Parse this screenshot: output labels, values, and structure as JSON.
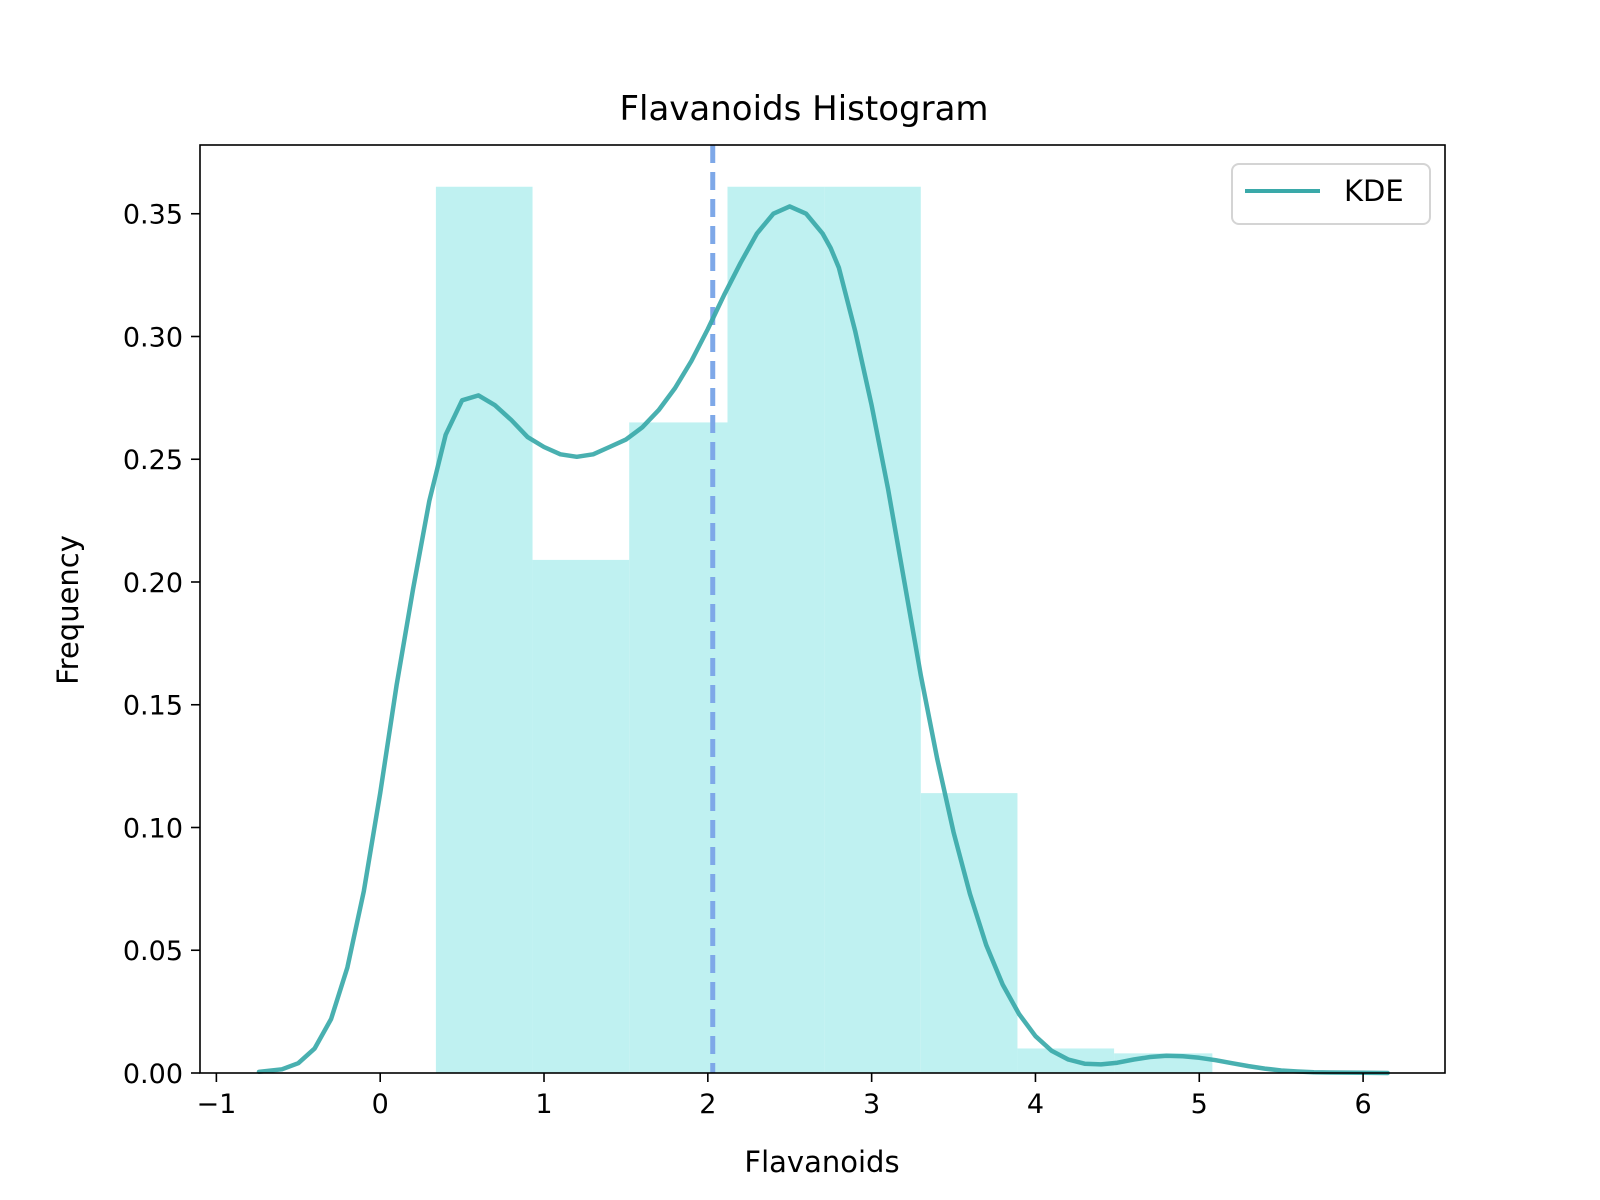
{
  "chart_data": {
    "type": "bar",
    "title": "Flavanoids Histogram",
    "xlabel": "Flavanoids",
    "ylabel": "Frequency",
    "xlim": [
      -1.1,
      6.5
    ],
    "ylim": [
      0,
      0.378
    ],
    "x_ticks": [
      -1,
      0,
      1,
      2,
      3,
      4,
      5,
      6
    ],
    "x_tick_labels": [
      "−1",
      "0",
      "1",
      "2",
      "3",
      "4",
      "5",
      "6"
    ],
    "y_ticks": [
      0,
      0.05,
      0.1,
      0.15,
      0.2,
      0.25,
      0.3,
      0.35
    ],
    "y_tick_labels": [
      "0.00",
      "0.05",
      "0.10",
      "0.15",
      "0.20",
      "0.25",
      "0.30",
      "0.35"
    ],
    "grid": false,
    "legend": {
      "position": "top-right",
      "entries": [
        {
          "label": "KDE",
          "color": "#3aa9a9"
        }
      ]
    },
    "histogram": {
      "color": "#bff1f1",
      "bins": [
        {
          "x0": 0.34,
          "x1": 0.93,
          "value": 0.361
        },
        {
          "x0": 0.93,
          "x1": 1.52,
          "value": 0.209
        },
        {
          "x0": 1.52,
          "x1": 2.12,
          "value": 0.265
        },
        {
          "x0": 2.12,
          "x1": 2.71,
          "value": 0.361
        },
        {
          "x0": 2.71,
          "x1": 3.3,
          "value": 0.361
        },
        {
          "x0": 3.3,
          "x1": 3.89,
          "value": 0.114
        },
        {
          "x0": 3.89,
          "x1": 4.48,
          "value": 0.01
        },
        {
          "x0": 4.48,
          "x1": 5.08,
          "value": 0.008
        }
      ]
    },
    "kde": {
      "name": "KDE",
      "color": "#3aa9a9",
      "x": [
        -0.74,
        -0.6,
        -0.5,
        -0.4,
        -0.3,
        -0.2,
        -0.1,
        0.0,
        0.1,
        0.2,
        0.3,
        0.4,
        0.5,
        0.6,
        0.7,
        0.8,
        0.9,
        1.0,
        1.1,
        1.2,
        1.3,
        1.4,
        1.5,
        1.6,
        1.7,
        1.8,
        1.9,
        2.0,
        2.1,
        2.2,
        2.3,
        2.4,
        2.5,
        2.6,
        2.7,
        2.75,
        2.8,
        2.9,
        3.0,
        3.1,
        3.2,
        3.3,
        3.4,
        3.5,
        3.6,
        3.7,
        3.8,
        3.9,
        4.0,
        4.1,
        4.2,
        4.3,
        4.4,
        4.5,
        4.6,
        4.7,
        4.8,
        4.9,
        5.0,
        5.1,
        5.2,
        5.3,
        5.4,
        5.5,
        5.6,
        5.7,
        5.8,
        6.0,
        6.15
      ],
      "y": [
        0.0005,
        0.0015,
        0.004,
        0.01,
        0.022,
        0.043,
        0.074,
        0.114,
        0.158,
        0.197,
        0.233,
        0.26,
        0.274,
        0.276,
        0.272,
        0.266,
        0.259,
        0.255,
        0.252,
        0.251,
        0.252,
        0.255,
        0.258,
        0.263,
        0.27,
        0.279,
        0.29,
        0.303,
        0.317,
        0.33,
        0.342,
        0.35,
        0.353,
        0.35,
        0.342,
        0.336,
        0.328,
        0.302,
        0.272,
        0.238,
        0.2,
        0.162,
        0.128,
        0.098,
        0.073,
        0.052,
        0.036,
        0.024,
        0.015,
        0.009,
        0.0055,
        0.0038,
        0.0035,
        0.0042,
        0.0055,
        0.0065,
        0.007,
        0.0068,
        0.0062,
        0.0052,
        0.004,
        0.0028,
        0.0018,
        0.001,
        0.0006,
        0.0003,
        0.0002,
        0.0001,
        0.0
      ]
    },
    "mean_line": {
      "x": 2.03,
      "color": "#7ea8e8",
      "style": "dashed"
    }
  }
}
